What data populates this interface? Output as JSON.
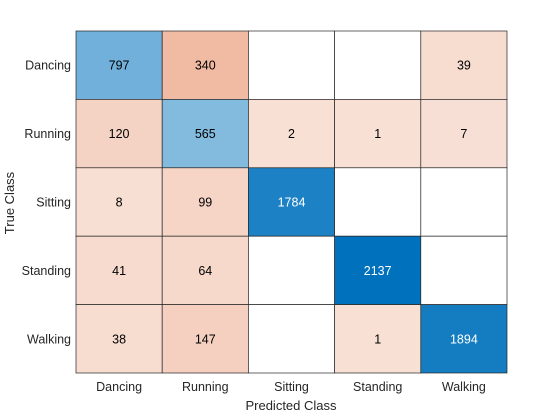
{
  "chart_data": {
    "type": "heatmap",
    "title": "",
    "xlabel": "Predicted Class",
    "ylabel": "True Class",
    "classes": [
      "Dancing",
      "Running",
      "Sitting",
      "Standing",
      "Walking"
    ],
    "matrix": [
      [
        797,
        340,
        0,
        0,
        39
      ],
      [
        120,
        565,
        2,
        1,
        7
      ],
      [
        8,
        99,
        1784,
        0,
        0
      ],
      [
        41,
        64,
        0,
        2137,
        0
      ],
      [
        38,
        147,
        0,
        1,
        1894
      ]
    ],
    "colors": {
      "diagonal_dark": "#0072bd",
      "diagonal_light": "#ffffff",
      "offdiag_dark": "#d95319",
      "offdiag_light": "#ffffff",
      "grid": "#262626",
      "text_dark": "#000000",
      "text_light": "#ffffff"
    }
  }
}
